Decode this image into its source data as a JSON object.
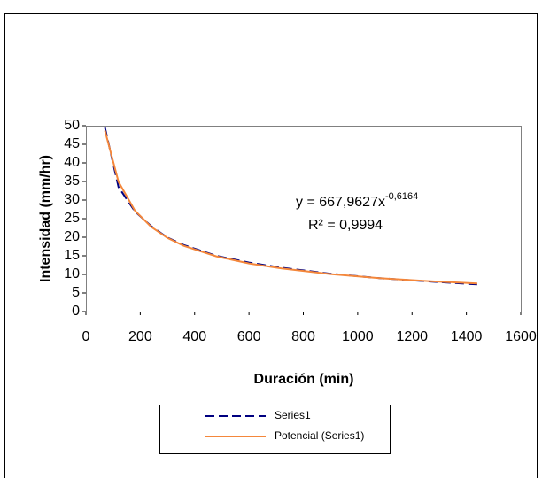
{
  "chart_data": {
    "type": "line",
    "x": [
      70,
      120,
      180,
      240,
      300,
      360,
      480,
      600,
      720,
      900,
      1080,
      1260,
      1440
    ],
    "series": [
      {
        "name": "Series1",
        "color": "#000080",
        "dash": true,
        "values": [
          49.5,
          33.5,
          27.0,
          23.0,
          19.9,
          17.9,
          15.0,
          13.2,
          11.8,
          10.2,
          9.0,
          8.1,
          7.3
        ]
      },
      {
        "name": "Potencial (Series1)",
        "color": "#f4873b",
        "dash": false,
        "values": [
          48.7,
          34.9,
          27.2,
          22.8,
          19.8,
          17.7,
          14.85,
          12.95,
          11.6,
          10.1,
          9.0,
          8.2,
          7.55
        ]
      }
    ],
    "xlabel": "Duración (min)",
    "ylabel": "Intensidad (mm/hr)",
    "xlim": [
      0,
      1600
    ],
    "xticks": [
      0,
      200,
      400,
      600,
      800,
      1000,
      1200,
      1400,
      1600
    ],
    "ylim": [
      0,
      50
    ],
    "yticks": [
      0,
      5,
      10,
      15,
      20,
      25,
      30,
      35,
      40,
      45,
      50
    ],
    "annotation": {
      "equation": "y = 667,9627x",
      "exponent": "-0,6164",
      "r2": "R² = 0,9994"
    },
    "grid": false
  }
}
